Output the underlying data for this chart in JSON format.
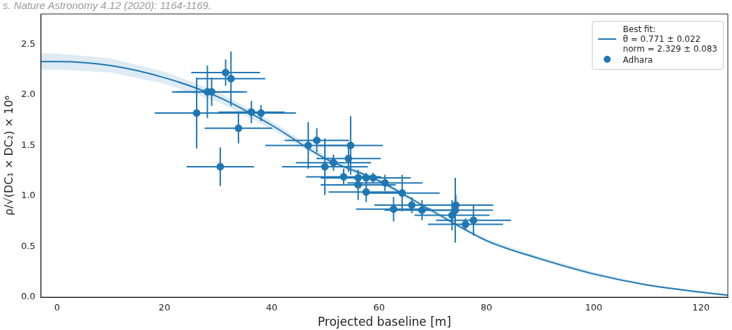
{
  "chart_data": {
    "type": "scatter",
    "xlabel": "Projected baseline [m]",
    "ylabel": "ρ/√(DC₁ × DC₂) × 10⁶",
    "annotations": [
      "s. Nature Astronomy 4.12 (2020): 1164-1169."
    ],
    "xlim": [
      -3,
      125
    ],
    "xticks": [
      0,
      20,
      40,
      60,
      80,
      100,
      120
    ],
    "ylim": [
      0,
      2.8
    ],
    "yticks": [
      {
        "value": 0,
        "label": "0.0"
      },
      {
        "value": 0.5,
        "label": "0.5"
      },
      {
        "value": 1,
        "label": "1.0"
      },
      {
        "value": 1.5,
        "label": "1.5"
      },
      {
        "value": 2,
        "label": "2.0"
      },
      {
        "value": 2.5,
        "label": "2.5"
      }
    ],
    "grid": false,
    "legend": "top right",
    "series": [
      {
        "type": "line",
        "name": "Best fit:\nθ = 0.771 ± 0.022\nnorm = 2.329 ± 0.083",
        "color": "#1f77b4",
        "line_style": "solid",
        "marker": "none",
        "x": [
          -3,
          0,
          10,
          20,
          30,
          40,
          50,
          60,
          70,
          80,
          90,
          100,
          110,
          120,
          125
        ],
        "values": [
          2.33,
          2.33,
          2.29,
          2.17,
          1.98,
          1.7,
          1.37,
          1.15,
          0.85,
          0.56,
          0.38,
          0.23,
          0.12,
          0.05,
          0.02
        ],
        "lower": [
          2.25,
          2.25,
          2.22,
          2.11,
          1.93,
          1.66,
          1.34,
          1.13,
          0.83,
          0.54,
          0.36,
          0.21,
          0.11,
          0.04,
          0.01
        ],
        "upper": [
          2.41,
          2.41,
          2.36,
          2.23,
          2.03,
          1.74,
          1.4,
          1.17,
          0.87,
          0.58,
          0.4,
          0.25,
          0.13,
          0.06,
          0.03
        ]
      },
      {
        "name": "Adhara",
        "color": "#1f77b4",
        "marker": "circle",
        "x": [
          31.4,
          32.4,
          28.0,
          28.8,
          26.0,
          36.2,
          38.0,
          33.8,
          30.4,
          46.8,
          48.4,
          54.7,
          54.3,
          49.9,
          51.5,
          53.4,
          56.1,
          57.6,
          58.9,
          56.1,
          61.1,
          57.6,
          64.3,
          62.7,
          66.1,
          68.0,
          74.2,
          74.3,
          73.6,
          76.1,
          77.6
        ],
        "values": [
          2.22,
          2.16,
          2.03,
          2.03,
          1.82,
          1.83,
          1.82,
          1.67,
          1.29,
          1.5,
          1.55,
          1.5,
          1.37,
          1.29,
          1.33,
          1.19,
          1.18,
          1.18,
          1.18,
          1.11,
          1.13,
          1.04,
          1.03,
          0.87,
          0.91,
          0.86,
          0.86,
          0.91,
          0.81,
          0.72,
          0.76
        ],
        "errors": [
          0.13,
          0.27,
          0.26,
          0.14,
          0.35,
          0.11,
          0.08,
          0.15,
          0.19,
          0.23,
          0.12,
          0.29,
          0.13,
          0.28,
          0.08,
          0.08,
          0.05,
          0.05,
          0.05,
          0.15,
          0.08,
          0.1,
          0.18,
          0.12,
          0.08,
          0.1,
          0.32,
          0.1,
          0.15,
          0.06,
          0.15
        ],
        "xerrors": [
          6.4,
          6.4,
          6.6,
          6.6,
          7.8,
          6.2,
          6.5,
          6.3,
          6.3,
          8,
          6,
          6,
          6,
          8,
          7,
          7,
          7,
          7,
          7,
          7,
          7,
          7,
          7,
          7,
          7,
          7,
          7,
          7,
          7,
          7,
          7
        ]
      }
    ]
  }
}
